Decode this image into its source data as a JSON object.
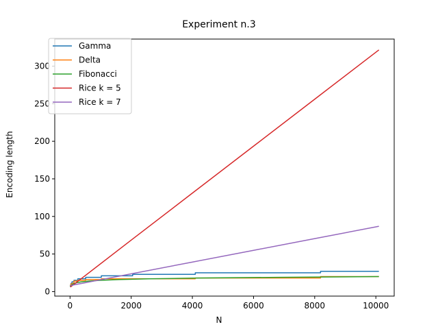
{
  "chart_data": {
    "type": "line",
    "title": "Experiment n.3",
    "xlabel": "N",
    "ylabel": "Encoding length",
    "xlim": [
      -500,
      10600
    ],
    "ylim": [
      -6,
      336
    ],
    "xticks": [
      0,
      2000,
      4000,
      6000,
      8000,
      10000
    ],
    "yticks": [
      0,
      50,
      100,
      150,
      200,
      250,
      300
    ],
    "grid": false,
    "legend_position": "upper left",
    "series": [
      {
        "name": "Gamma",
        "color": "#1f77b4",
        "x": [
          10,
          16,
          31,
          32,
          63,
          64,
          127,
          128,
          255,
          256,
          511,
          512,
          1023,
          1024,
          2047,
          2048,
          4095,
          4096,
          8191,
          8192,
          10100
        ],
        "y": [
          7,
          9,
          9,
          11,
          11,
          13,
          13,
          15,
          15,
          17,
          17,
          19,
          19,
          21,
          21,
          23,
          23,
          25,
          25,
          27,
          27
        ]
      },
      {
        "name": "Delta",
        "color": "#ff7f0e",
        "x": [
          10,
          16,
          31,
          32,
          63,
          64,
          127,
          128,
          255,
          256,
          511,
          512,
          1023,
          1024,
          2047,
          2048,
          4095,
          4096,
          8191,
          8192,
          10100
        ],
        "y": [
          8,
          9,
          9,
          10,
          10,
          11,
          11,
          14,
          14,
          15,
          15,
          16,
          16,
          17,
          17,
          17,
          17,
          18,
          18,
          20,
          20
        ]
      },
      {
        "name": "Fibonacci",
        "color": "#2ca02c",
        "x": [
          10,
          21,
          34,
          55,
          89,
          144,
          233,
          377,
          610,
          987,
          1597,
          2584,
          4181,
          6765,
          10100
        ],
        "y": [
          6,
          7,
          8,
          9,
          10,
          11,
          12,
          13,
          14,
          15,
          16,
          17,
          18,
          19,
          20
        ]
      },
      {
        "name": "Rice k = 5",
        "color": "#d62728",
        "x": [
          10,
          2000,
          4000,
          6000,
          8000,
          10100
        ],
        "y": [
          6,
          68.5,
          131,
          193.5,
          256,
          321.6
        ]
      },
      {
        "name": "Rice k = 7",
        "color": "#9467bd",
        "x": [
          10,
          2000,
          4000,
          6000,
          8000,
          10000,
          10100
        ],
        "y": [
          8,
          23.6,
          39.3,
          54.9,
          70.5,
          86.1,
          86.9
        ]
      }
    ]
  }
}
